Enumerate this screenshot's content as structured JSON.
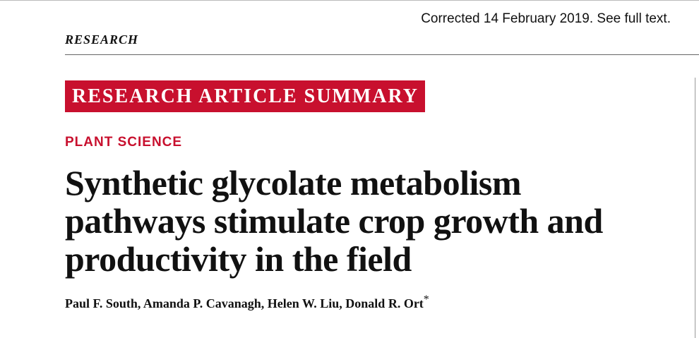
{
  "header": {
    "correction": "Corrected 14 February 2019. See full text.",
    "section": "RESEARCH"
  },
  "banner": "RESEARCH ARTICLE SUMMARY",
  "category": "PLANT SCIENCE",
  "title_lines": [
    "Synthetic glycolate metabolism",
    "pathways stimulate crop growth and",
    "productivity in the field"
  ],
  "authors": "Paul F. South, Amanda P. Cavanagh, Helen W. Liu, Donald R. Ort",
  "author_mark": "*"
}
